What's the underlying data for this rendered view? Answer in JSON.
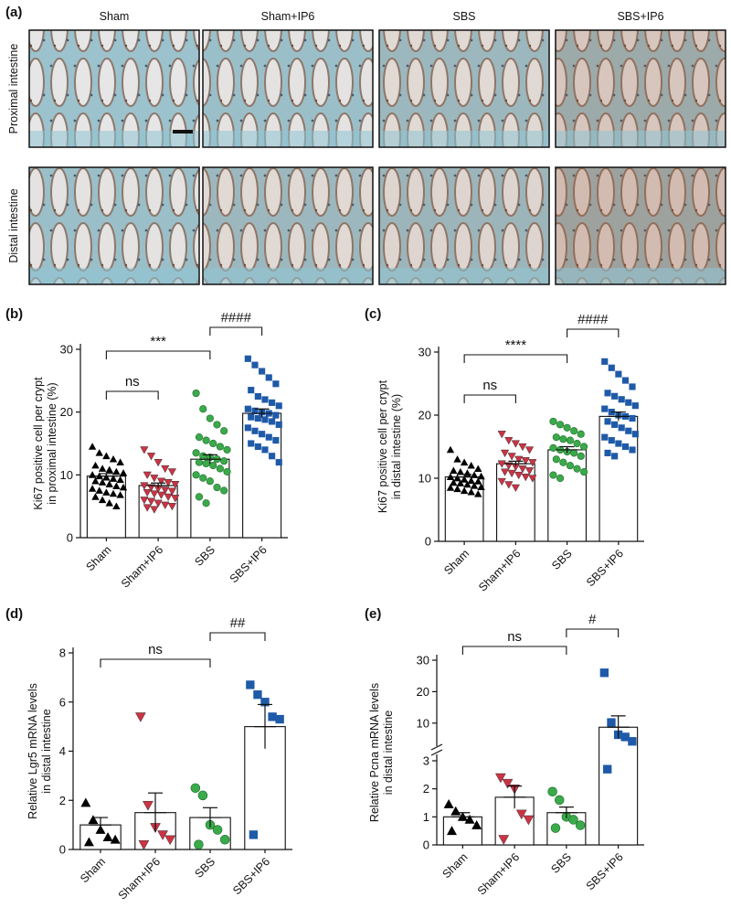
{
  "figure": {
    "panel_labels": [
      "(a)",
      "(b)",
      "(c)",
      "(d)",
      "(e)"
    ],
    "micrograph": {
      "columns": [
        "Sham",
        "Sham+IP6",
        "SBS",
        "SBS+IP6"
      ],
      "rows": [
        "Proximal intestine",
        "Distal intestine"
      ],
      "stain_level": [
        [
          0.15,
          0.2,
          0.35,
          0.6
        ],
        [
          0.2,
          0.35,
          0.4,
          0.75
        ]
      ]
    }
  },
  "colors": {
    "Sham": "#000000",
    "Sham+IP6": "#cc3344",
    "SBS": "#3aaa4a",
    "SBS+IP6": "#1f5aa8",
    "tissue_blue": "#8fc4d3",
    "stain_brown": "#a0522d"
  },
  "chart_data": [
    {
      "panel": "(b)",
      "type": "bar",
      "categories": [
        "Sham",
        "Sham+IP6",
        "SBS",
        "SBS+IP6"
      ],
      "ylabel_lines": [
        "Ki67 positive cell per crypt",
        "in proximal intestine (%)"
      ],
      "ylim": [
        0,
        30
      ],
      "yticks": [
        0,
        10,
        20,
        30
      ],
      "means": [
        9.8,
        8.3,
        12.5,
        19.8
      ],
      "sem": [
        0.4,
        0.4,
        0.7,
        0.7
      ],
      "markers": [
        "triangle",
        "triangle-down",
        "circle",
        "square"
      ],
      "points": [
        [
          14.5,
          13.5,
          13.0,
          12.5,
          12.0,
          11.5,
          11.0,
          10.8,
          10.5,
          10.3,
          10.0,
          9.8,
          9.6,
          9.4,
          9.2,
          9.0,
          8.8,
          8.5,
          8.2,
          8.0,
          7.8,
          7.5,
          7.2,
          7.0,
          6.8,
          6.5,
          6.0,
          5.5,
          5.0
        ],
        [
          14.0,
          13.0,
          12.0,
          11.0,
          10.5,
          10.0,
          9.5,
          9.0,
          8.8,
          8.5,
          8.3,
          8.0,
          7.8,
          7.6,
          7.4,
          7.2,
          7.0,
          6.8,
          6.5,
          6.3,
          6.0,
          5.8,
          5.5,
          5.2,
          5.0,
          4.8,
          4.5
        ],
        [
          23.0,
          20.5,
          19.0,
          18.0,
          17.0,
          16.0,
          15.5,
          15.0,
          14.5,
          14.0,
          13.5,
          13.0,
          12.8,
          12.5,
          12.2,
          12.0,
          11.8,
          11.5,
          11.0,
          10.5,
          10.0,
          9.5,
          9.0,
          8.0,
          7.5,
          6.5,
          5.5
        ],
        [
          28.5,
          27.5,
          26.5,
          25.5,
          24.5,
          23.5,
          22.5,
          22.0,
          21.5,
          21.0,
          20.5,
          20.2,
          20.0,
          19.8,
          19.5,
          19.2,
          19.0,
          18.8,
          18.5,
          18.0,
          17.5,
          17.0,
          16.5,
          16.0,
          15.5,
          15.0,
          14.5,
          14.0,
          13.0,
          12.0
        ]
      ],
      "brackets": [
        {
          "from": 0,
          "to": 1,
          "y": 14.8,
          "label": "ns",
          "level": "low"
        },
        {
          "from": 0,
          "to": 2,
          "y": 26.5,
          "label": "***",
          "level": "high"
        },
        {
          "from": 2,
          "to": 3,
          "y": 30.0,
          "label": "####",
          "level": "top"
        }
      ]
    },
    {
      "panel": "(c)",
      "type": "bar",
      "categories": [
        "Sham",
        "Sham+IP6",
        "SBS",
        "SBS+IP6"
      ],
      "ylabel_lines": [
        "Ki67 positive cell per crypt",
        "in distal intestine (%)"
      ],
      "ylim": [
        0,
        30
      ],
      "yticks": [
        0,
        10,
        20,
        30
      ],
      "means": [
        10.2,
        12.3,
        14.5,
        19.8
      ],
      "sem": [
        0.4,
        0.4,
        0.5,
        0.7
      ],
      "markers": [
        "triangle",
        "triangle-down",
        "circle",
        "square"
      ],
      "points": [
        [
          14.5,
          13.0,
          12.5,
          12.0,
          11.5,
          11.2,
          11.0,
          10.8,
          10.5,
          10.3,
          10.2,
          10.0,
          9.8,
          9.6,
          9.5,
          9.3,
          9.2,
          9.0,
          8.8,
          8.6,
          8.5,
          8.3,
          8.0,
          7.8,
          7.5
        ],
        [
          17.0,
          16.0,
          15.5,
          15.0,
          14.5,
          14.0,
          13.5,
          13.0,
          12.8,
          12.5,
          12.3,
          12.0,
          11.8,
          11.5,
          11.2,
          11.0,
          10.8,
          10.5,
          10.2,
          10.0,
          9.5,
          9.0,
          8.5
        ],
        [
          19.0,
          18.5,
          18.0,
          17.5,
          17.0,
          16.5,
          16.2,
          16.0,
          15.5,
          15.0,
          14.8,
          14.5,
          14.2,
          14.0,
          13.5,
          13.0,
          12.5,
          12.0,
          11.5,
          11.0,
          10.5,
          10.0
        ],
        [
          28.5,
          27.5,
          26.5,
          25.5,
          24.5,
          23.5,
          23.0,
          22.5,
          22.0,
          21.5,
          21.0,
          20.5,
          20.0,
          19.8,
          19.5,
          19.0,
          18.5,
          18.0,
          17.5,
          17.0,
          16.5,
          16.0,
          15.5,
          15.0,
          14.5,
          14.0,
          13.5
        ]
      ],
      "brackets": [
        {
          "from": 0,
          "to": 1,
          "y": 22.5,
          "label": "ns",
          "level": "low"
        },
        {
          "from": 0,
          "to": 2,
          "y": 26.3,
          "label": "****",
          "level": "high"
        },
        {
          "from": 2,
          "to": 3,
          "y": 30.3,
          "label": "####",
          "level": "top"
        }
      ]
    },
    {
      "panel": "(d)",
      "type": "bar",
      "categories": [
        "Sham",
        "Sham+IP6",
        "SBS",
        "SBS+IP6"
      ],
      "ylabel_lines": [
        "Relative Lgr5 mRNA levels",
        "in distal intestine"
      ],
      "ylim": [
        0,
        8
      ],
      "yticks": [
        0,
        2,
        4,
        6,
        8
      ],
      "means": [
        1.0,
        1.5,
        1.3,
        5.0
      ],
      "sem": [
        0.3,
        0.8,
        0.4,
        0.9
      ],
      "markers": [
        "triangle",
        "triangle-down",
        "circle",
        "square"
      ],
      "points": [
        [
          1.9,
          1.2,
          0.8,
          0.5,
          0.4,
          0.3
        ],
        [
          5.4,
          1.8,
          0.9,
          0.6,
          0.4,
          0.2
        ],
        [
          2.5,
          2.2,
          1.0,
          0.8,
          0.4,
          0.2
        ],
        [
          6.7,
          6.3,
          6.0,
          5.4,
          5.3,
          0.6
        ]
      ],
      "brackets": [
        {
          "from": 0,
          "to": 2,
          "y": 7.1,
          "label": "ns",
          "level": "high"
        },
        {
          "from": 2,
          "to": 3,
          "y": 8.0,
          "label": "##",
          "level": "top"
        }
      ]
    },
    {
      "panel": "(e)",
      "type": "bar",
      "categories": [
        "Sham",
        "Sham+IP6",
        "SBS",
        "SBS+IP6"
      ],
      "ylabel_lines": [
        "Relative Pcna mRNA levels",
        "in distal intestine"
      ],
      "axis_break": {
        "lower_ticks": [
          0,
          1,
          2,
          3
        ],
        "upper_ticks": [
          10,
          20,
          30
        ]
      },
      "means": [
        1.0,
        1.7,
        1.15,
        8.7
      ],
      "sem": [
        0.15,
        0.4,
        0.2,
        3.6
      ],
      "markers": [
        "triangle",
        "triangle-down",
        "circle",
        "square"
      ],
      "points": [
        [
          1.45,
          1.2,
          1.0,
          0.9,
          0.7,
          0.5
        ],
        [
          2.4,
          2.2,
          2.0,
          1.1,
          0.9,
          0.2
        ],
        [
          1.9,
          1.6,
          1.0,
          0.9,
          0.7,
          0.6
        ],
        [
          26.0,
          10.2,
          6.3,
          5.6,
          4.2,
          2.7
        ]
      ],
      "brackets": [
        {
          "from": 0,
          "to": 2,
          "y": 28.5,
          "label": "ns",
          "level": "high"
        },
        {
          "from": 2,
          "to": 3,
          "y": 33.5,
          "label": "#",
          "level": "top"
        }
      ]
    }
  ]
}
